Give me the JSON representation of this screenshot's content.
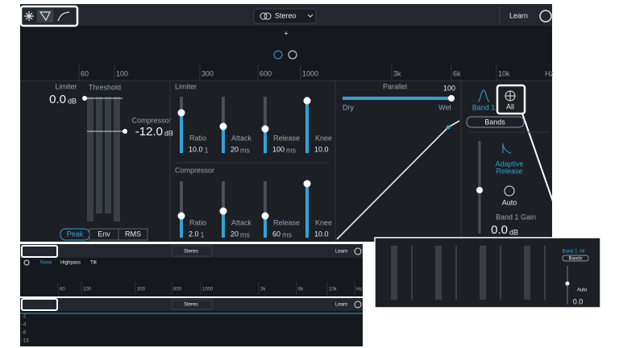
{
  "toolbar": {
    "stereo": "Stereo",
    "learn": "Learn"
  },
  "frequency_labels": [
    "60",
    "100",
    "300",
    "600",
    "1000",
    "3k",
    "6k",
    "10k",
    "Hz"
  ],
  "detector": {
    "limiter_label": "Limiter",
    "limiter_value": "0.0",
    "limiter_unit": "dB",
    "threshold_label": "Threshold",
    "compressor_label": "Compressor",
    "compressor_value": "-12.0",
    "compressor_unit": "dB",
    "modes": [
      "Peak",
      "Env",
      "RMS"
    ]
  },
  "limiter": {
    "title": "Limiter",
    "controls": [
      {
        "label": "Ratio",
        "value": "10.0",
        "unit": "1"
      },
      {
        "label": "Attack",
        "value": "20",
        "unit": "ms"
      },
      {
        "label": "Release",
        "value": "100",
        "unit": "ms"
      },
      {
        "label": "Knee",
        "value": "10.0"
      }
    ]
  },
  "compressor": {
    "title": "Compressor",
    "controls": [
      {
        "label": "Ratio",
        "value": "2.0",
        "unit": "1"
      },
      {
        "label": "Attack",
        "value": "20",
        "unit": "ms"
      },
      {
        "label": "Release",
        "value": "60",
        "unit": "ms"
      },
      {
        "label": "Knee",
        "value": "10.0"
      }
    ]
  },
  "parallel": {
    "label": "Parallel",
    "value": "100",
    "dry": "Dry",
    "wet": "Wet"
  },
  "band": {
    "band": "Band 1",
    "all": "All",
    "bands": "Bands",
    "adaptive_release": [
      "Adaptive",
      "Release"
    ],
    "auto": "Auto",
    "gain_label": "Band 1 Gain",
    "gain_value": "0.0",
    "gain_unit": "dB"
  },
  "inset_eq": {
    "stereo": "Stereo",
    "learn": "Learn",
    "filters": [
      "None",
      "Highpass",
      "Tilt"
    ],
    "frequency_labels": [
      "60",
      "100",
      "300",
      "600",
      "1000",
      "3k",
      "6k",
      "10k",
      "Hz"
    ]
  },
  "inset_meter": {
    "stereo": "Stereo",
    "learn": "Learn",
    "levels": [
      "-2",
      "-4",
      "-8",
      "-15"
    ]
  },
  "inset_bands": {
    "band": "Band 1",
    "all": "All",
    "bands": "Bands",
    "auto": "Auto",
    "gain_value": "0.0"
  }
}
